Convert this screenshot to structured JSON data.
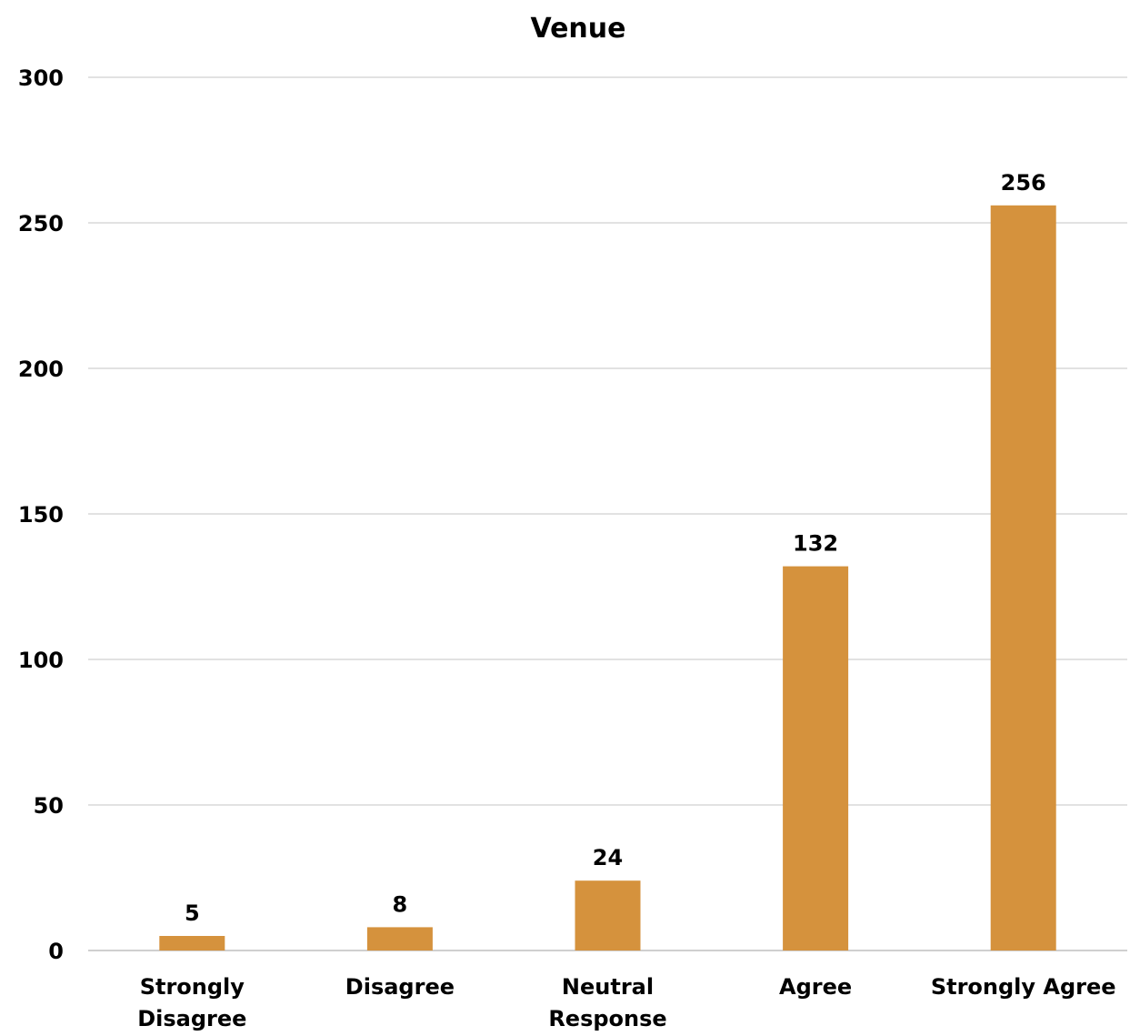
{
  "chart_data": {
    "type": "bar",
    "title": "Venue",
    "xlabel": "",
    "ylabel": "",
    "categories": [
      "Strongly Disagree",
      "Disagree",
      "Neutral Response",
      "Agree",
      "Strongly Agree"
    ],
    "category_label_lines": [
      [
        "Strongly",
        "Disagree"
      ],
      [
        "Disagree"
      ],
      [
        "Neutral",
        "Response"
      ],
      [
        "Agree"
      ],
      [
        "Strongly Agree"
      ]
    ],
    "values": [
      5,
      8,
      24,
      132,
      256
    ],
    "data_labels": [
      "5",
      "8",
      "24",
      "132",
      "256"
    ],
    "ylim": [
      0,
      300
    ],
    "yticks": [
      0,
      50,
      100,
      150,
      200,
      250,
      300
    ],
    "ytick_labels": [
      "0",
      "50",
      "100",
      "150",
      "200",
      "250",
      "300"
    ],
    "grid": true,
    "legend": "none",
    "bar_color": "#d5923d"
  }
}
